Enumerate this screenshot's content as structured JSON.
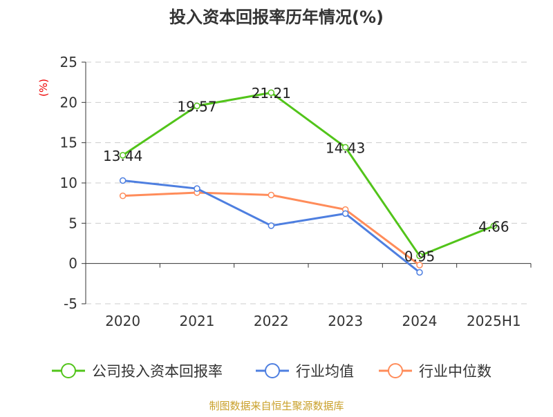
{
  "chart_data": {
    "type": "line",
    "title": "投入资本回报率历年情况(%)",
    "ylabel": "(%)",
    "categories": [
      "2020",
      "2021",
      "2022",
      "2023",
      "2024",
      "2025H1"
    ],
    "ylim": [
      -5,
      25
    ],
    "yticks": [
      -5,
      0,
      5,
      10,
      15,
      20,
      25
    ],
    "grid": true,
    "legend_placement": "bottom",
    "series": [
      {
        "name": "公司投入资本回报率",
        "color": "#52c41a",
        "values": [
          13.44,
          19.57,
          21.21,
          14.43,
          0.95,
          4.66
        ],
        "labels": [
          "13.44",
          "19.57",
          "21.21",
          "14.43",
          "0.95",
          "4.66"
        ]
      },
      {
        "name": "行业均值",
        "color": "#4e7fe0",
        "values": [
          10.3,
          9.3,
          4.7,
          6.2,
          -1.1,
          null
        ]
      },
      {
        "name": "行业中位数",
        "color": "#ff8c5a",
        "values": [
          8.4,
          8.8,
          8.5,
          6.7,
          -0.2,
          null
        ]
      }
    ]
  },
  "source": "制图数据来自恒生聚源数据库"
}
